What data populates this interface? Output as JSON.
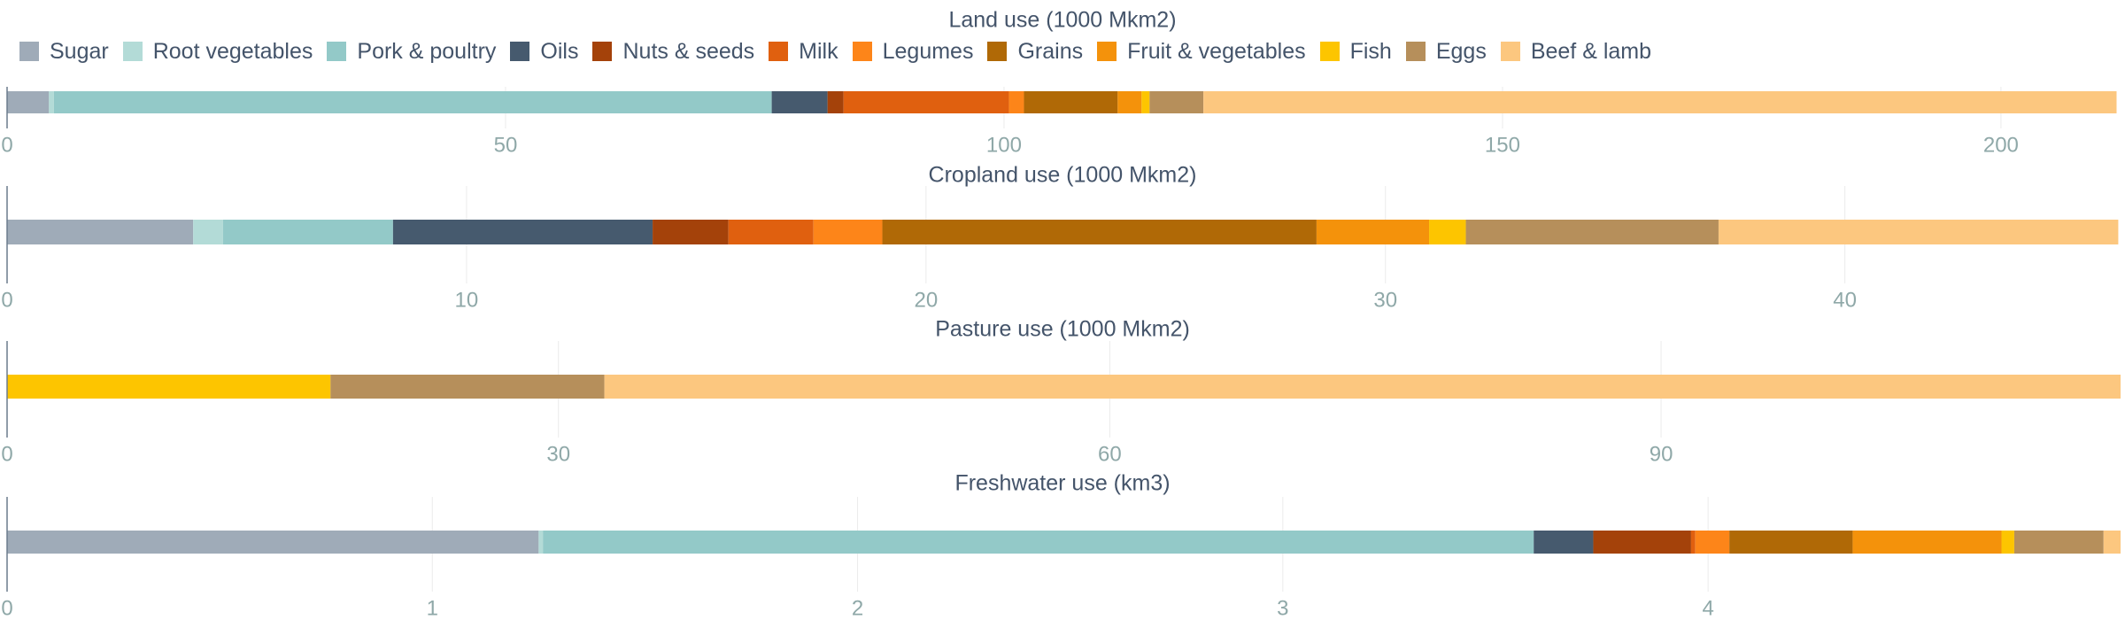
{
  "legend": [
    {
      "name": "Sugar",
      "color": "#9fabb8"
    },
    {
      "name": "Root vegetables",
      "color": "#b3dbd7"
    },
    {
      "name": "Pork & poultry",
      "color": "#93c9c8"
    },
    {
      "name": "Oils",
      "color": "#465a6e"
    },
    {
      "name": "Nuts & seeds",
      "color": "#a4420a"
    },
    {
      "name": "Milk",
      "color": "#e0600f"
    },
    {
      "name": "Legumes",
      "color": "#fd8519"
    },
    {
      "name": "Grains",
      "color": "#b06906"
    },
    {
      "name": "Fruit & vegetables",
      "color": "#f4920b"
    },
    {
      "name": "Fish",
      "color": "#fdc500"
    },
    {
      "name": "Eggs",
      "color": "#b68f5b"
    },
    {
      "name": "Beef & lamb",
      "color": "#fcc77f"
    }
  ],
  "chart_data": [
    {
      "type": "bar",
      "orientation": "horizontal",
      "stacked": true,
      "title": "Land use (1000 Mkm2)",
      "xlim": [
        0,
        212
      ],
      "ticks": [
        0,
        50,
        100,
        150,
        200
      ],
      "grid": true,
      "legend_position": "top",
      "segments": [
        {
          "name": "Sugar",
          "value": 4.2
        },
        {
          "name": "Root vegetables",
          "value": 0.5
        },
        {
          "name": "Pork & poultry",
          "value": 72
        },
        {
          "name": "Oils",
          "value": 5.6
        },
        {
          "name": "Nuts & seeds",
          "value": 1.6
        },
        {
          "name": "Milk",
          "value": 16.6
        },
        {
          "name": "Legumes",
          "value": 1.5
        },
        {
          "name": "Grains",
          "value": 9.4
        },
        {
          "name": "Fruit & vegetables",
          "value": 2.4
        },
        {
          "name": "Fish",
          "value": 0.8
        },
        {
          "name": "Eggs",
          "value": 5.4
        },
        {
          "name": "Beef & lamb",
          "value": 91.6
        }
      ]
    },
    {
      "type": "bar",
      "orientation": "horizontal",
      "stacked": true,
      "title": "Cropland use (1000 Mkm2)",
      "xlim": [
        0,
        46
      ],
      "ticks": [
        0,
        10,
        20,
        30,
        40
      ],
      "grid": true,
      "segments": [
        {
          "name": "Sugar",
          "value": 4.05
        },
        {
          "name": "Root vegetables",
          "value": 0.65
        },
        {
          "name": "Pork & poultry",
          "value": 3.7
        },
        {
          "name": "Oils",
          "value": 5.65
        },
        {
          "name": "Nuts & seeds",
          "value": 1.65
        },
        {
          "name": "Milk",
          "value": 1.85
        },
        {
          "name": "Legumes",
          "value": 1.5
        },
        {
          "name": "Grains",
          "value": 9.45
        },
        {
          "name": "Fruit & vegetables",
          "value": 2.45
        },
        {
          "name": "Fish",
          "value": 0.8
        },
        {
          "name": "Eggs",
          "value": 5.5
        },
        {
          "name": "Beef & lamb",
          "value": 8.7
        }
      ]
    },
    {
      "type": "bar",
      "orientation": "horizontal",
      "stacked": true,
      "title": "Pasture use (1000 Mkm2)",
      "xlim": [
        0,
        115
      ],
      "ticks": [
        0,
        30,
        60,
        90
      ],
      "grid": true,
      "segments": [
        {
          "name": "Fish",
          "value": 17.6
        },
        {
          "name": "Eggs",
          "value": 14.9
        },
        {
          "name": "Beef & lamb",
          "value": 82.5
        }
      ]
    },
    {
      "type": "bar",
      "orientation": "horizontal",
      "stacked": true,
      "title": "Freshwater use (km3)",
      "xlim": [
        0,
        4.97
      ],
      "ticks": [
        0,
        1,
        2,
        3,
        4
      ],
      "grid": true,
      "segments": [
        {
          "name": "Sugar",
          "value": 1.25
        },
        {
          "name": "Root vegetables",
          "value": 0.01
        },
        {
          "name": "Pork & poultry",
          "value": 2.33
        },
        {
          "name": "Oils",
          "value": 0.14
        },
        {
          "name": "Nuts & seeds",
          "value": 0.23
        },
        {
          "name": "Milk",
          "value": 0.01
        },
        {
          "name": "Legumes",
          "value": 0.08
        },
        {
          "name": "Grains",
          "value": 0.29
        },
        {
          "name": "Fruit & vegetables",
          "value": 0.35
        },
        {
          "name": "Fish",
          "value": 0.03
        },
        {
          "name": "Eggs",
          "value": 0.21
        },
        {
          "name": "Beef & lamb",
          "value": 0.04
        }
      ]
    }
  ]
}
